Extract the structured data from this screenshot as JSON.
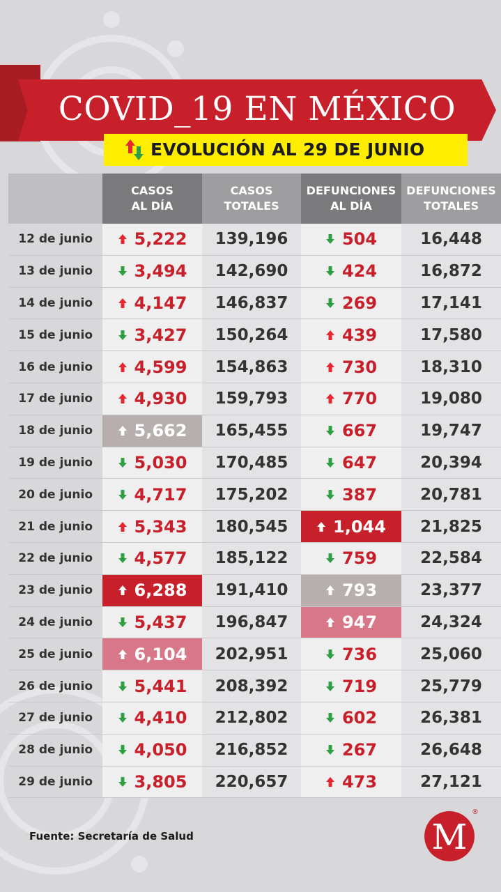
{
  "header": {
    "title": "COVID_19 EN MÉXICO",
    "subtitle": "EVOLUCIÓN AL 29 DE JUNIO",
    "subtitle_icon": "up-down-arrows-icon"
  },
  "columns": [
    {
      "line1": "CASOS",
      "line2": "AL DÍA"
    },
    {
      "line1": "CASOS",
      "line2": "TOTALES"
    },
    {
      "line1": "DEFUNCIONES",
      "line2": "AL DÍA"
    },
    {
      "line1": "DEFUNCIONES",
      "line2": "TOTALES"
    }
  ],
  "rows": [
    {
      "date": "12 de junio",
      "casos_dia": "5,222",
      "casos_dir": "up",
      "casos_hl": "",
      "casos_tot": "139,196",
      "def_dia": "504",
      "def_dir": "down",
      "def_hl": "",
      "def_tot": "16,448"
    },
    {
      "date": "13 de junio",
      "casos_dia": "3,494",
      "casos_dir": "down",
      "casos_hl": "",
      "casos_tot": "142,690",
      "def_dia": "424",
      "def_dir": "down",
      "def_hl": "",
      "def_tot": "16,872"
    },
    {
      "date": "14 de junio",
      "casos_dia": "4,147",
      "casos_dir": "up",
      "casos_hl": "",
      "casos_tot": "146,837",
      "def_dia": "269",
      "def_dir": "down",
      "def_hl": "",
      "def_tot": "17,141"
    },
    {
      "date": "15 de junio",
      "casos_dia": "3,427",
      "casos_dir": "down",
      "casos_hl": "",
      "casos_tot": "150,264",
      "def_dia": "439",
      "def_dir": "up",
      "def_hl": "",
      "def_tot": "17,580"
    },
    {
      "date": "16 de junio",
      "casos_dia": "4,599",
      "casos_dir": "up",
      "casos_hl": "",
      "casos_tot": "154,863",
      "def_dia": "730",
      "def_dir": "up",
      "def_hl": "",
      "def_tot": "18,310"
    },
    {
      "date": "17 de junio",
      "casos_dia": "4,930",
      "casos_dir": "up",
      "casos_hl": "",
      "casos_tot": "159,793",
      "def_dia": "770",
      "def_dir": "up",
      "def_hl": "",
      "def_tot": "19,080"
    },
    {
      "date": "18 de junio",
      "casos_dia": "5,662",
      "casos_dir": "up",
      "casos_hl": "gray",
      "casos_tot": "165,455",
      "def_dia": "667",
      "def_dir": "down",
      "def_hl": "",
      "def_tot": "19,747"
    },
    {
      "date": "19 de junio",
      "casos_dia": "5,030",
      "casos_dir": "down",
      "casos_hl": "",
      "casos_tot": "170,485",
      "def_dia": "647",
      "def_dir": "down",
      "def_hl": "",
      "def_tot": "20,394"
    },
    {
      "date": "20 de junio",
      "casos_dia": "4,717",
      "casos_dir": "down",
      "casos_hl": "",
      "casos_tot": "175,202",
      "def_dia": "387",
      "def_dir": "down",
      "def_hl": "",
      "def_tot": "20,781"
    },
    {
      "date": "21 de junio",
      "casos_dia": "5,343",
      "casos_dir": "up",
      "casos_hl": "",
      "casos_tot": "180,545",
      "def_dia": "1,044",
      "def_dir": "up",
      "def_hl": "red",
      "def_tot": "21,825"
    },
    {
      "date": "22 de junio",
      "casos_dia": "4,577",
      "casos_dir": "down",
      "casos_hl": "",
      "casos_tot": "185,122",
      "def_dia": "759",
      "def_dir": "down",
      "def_hl": "",
      "def_tot": "22,584"
    },
    {
      "date": "23 de junio",
      "casos_dia": "6,288",
      "casos_dir": "up",
      "casos_hl": "red",
      "casos_tot": "191,410",
      "def_dia": "793",
      "def_dir": "up",
      "def_hl": "gray",
      "def_tot": "23,377"
    },
    {
      "date": "24 de junio",
      "casos_dia": "5,437",
      "casos_dir": "down",
      "casos_hl": "",
      "casos_tot": "196,847",
      "def_dia": "947",
      "def_dir": "up",
      "def_hl": "pink",
      "def_tot": "24,324"
    },
    {
      "date": "25 de junio",
      "casos_dia": "6,104",
      "casos_dir": "up",
      "casos_hl": "pink",
      "casos_tot": "202,951",
      "def_dia": "736",
      "def_dir": "down",
      "def_hl": "",
      "def_tot": "25,060"
    },
    {
      "date": "26 de junio",
      "casos_dia": "5,441",
      "casos_dir": "down",
      "casos_hl": "",
      "casos_tot": "208,392",
      "def_dia": "719",
      "def_dir": "down",
      "def_hl": "",
      "def_tot": "25,779"
    },
    {
      "date": "27 de junio",
      "casos_dia": "4,410",
      "casos_dir": "down",
      "casos_hl": "",
      "casos_tot": "212,802",
      "def_dia": "602",
      "def_dir": "down",
      "def_hl": "",
      "def_tot": "26,381"
    },
    {
      "date": "28 de junio",
      "casos_dia": "4,050",
      "casos_dir": "down",
      "casos_hl": "",
      "casos_tot": "216,852",
      "def_dia": "267",
      "def_dir": "down",
      "def_hl": "",
      "def_tot": "26,648"
    },
    {
      "date": "29 de junio",
      "casos_dia": "3,805",
      "casos_dir": "down",
      "casos_hl": "",
      "casos_tot": "220,657",
      "def_dia": "473",
      "def_dir": "up",
      "def_hl": "",
      "def_tot": "27,121"
    }
  ],
  "colors": {
    "up_arrow": "#e8262f",
    "down_arrow": "#2ea043",
    "accent_red": "#c8202a",
    "yellow": "#ffed00"
  },
  "footer": {
    "source": "Fuente: Secretaría de Salud"
  },
  "logo": {
    "letter": "M",
    "mark": "®",
    "icon": "milenio-logo-icon"
  }
}
